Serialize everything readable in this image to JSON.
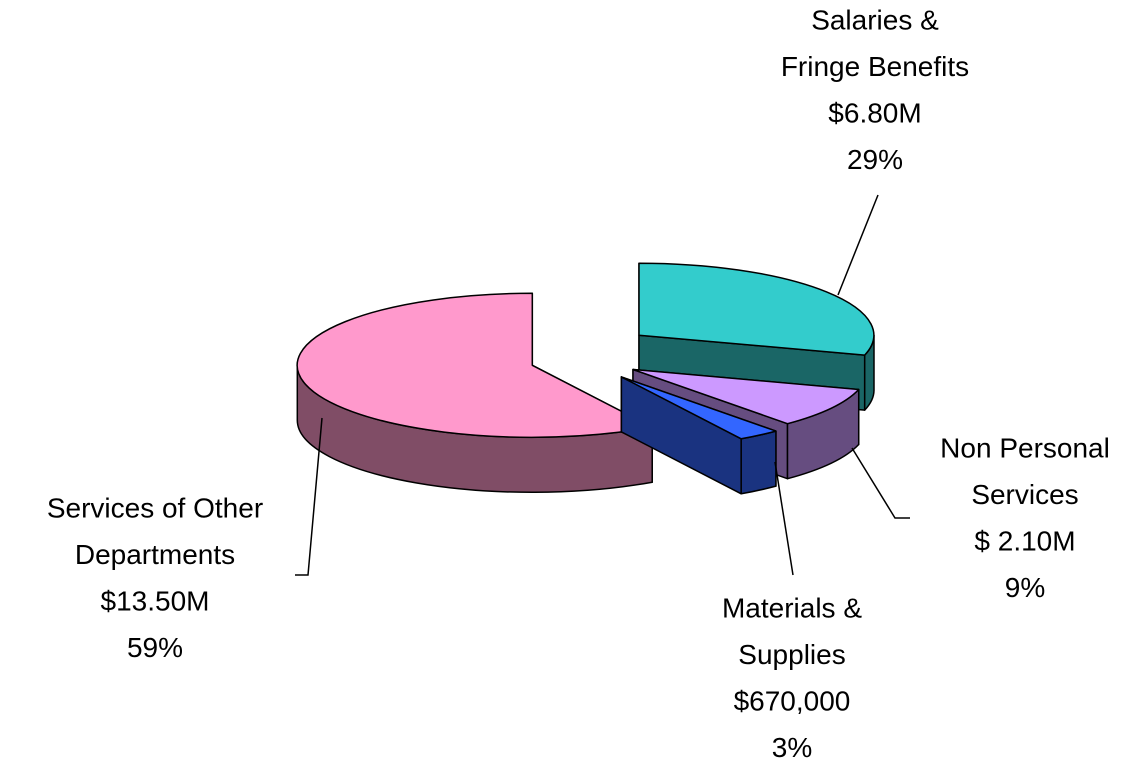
{
  "chart_data": {
    "type": "pie",
    "categories": [
      [
        "Salaries &",
        "Fringe Benefits"
      ],
      [
        "Non Personal",
        "Services"
      ],
      [
        "Materials &",
        "Supplies"
      ],
      [
        "Services of Other",
        "Departments"
      ]
    ],
    "values": [
      6800000,
      2100000,
      670000,
      13500000
    ],
    "value_labels": [
      "$6.80M",
      "$ 2.10M",
      "$670,000",
      "$13.50M"
    ],
    "percents": [
      29,
      9,
      3,
      59
    ],
    "percent_labels": [
      "29%",
      "9%",
      "3%",
      "59%"
    ],
    "colors": [
      "#33cccc",
      "#cc99ff",
      "#3366ff",
      "#ff99cc"
    ]
  }
}
